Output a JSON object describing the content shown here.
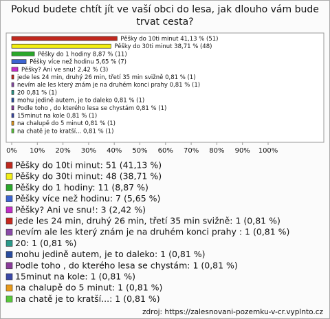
{
  "chart_data": {
    "type": "bar",
    "orientation": "horizontal",
    "title": "Pokud budete chtít jít ve vaší obci do lesa, jak dlouho vám bude trvat cesta?",
    "categories": [
      "Pěšky do 10ti minut",
      "Pěšky do 30ti minut",
      "Pěšky do 1 hodiny",
      "Pěšky více než hodinu",
      "Pěšky? Ani ve snu!",
      "jede les 24 min, druhý 26 min, třetí 35 min svižně",
      "nevím ale les který znám je na druhém konci prahy",
      "20",
      "mohu jedině autem, je to daleko",
      "Podle toho , do kterého lesa se chystám",
      "15minut na kole",
      "na chalupě do 5 minut",
      "na chatě je to kratší..."
    ],
    "values": [
      41.13,
      38.71,
      8.87,
      5.65,
      2.42,
      0.81,
      0.81,
      0.81,
      0.81,
      0.81,
      0.81,
      0.81,
      0.81
    ],
    "value_labels": [
      "41,13 % (51)",
      "38,71 % (48)",
      "8,87 % (11)",
      "5,65 % (7)",
      "2,42 % (3)",
      "0,81 % (1)",
      "0,81 % (1)",
      "0,81 % (1)",
      "0,81 % (1)",
      "0,81 % (1)",
      "0,81 % (1)",
      "0,81 % (1)",
      "0,81 % (1)"
    ],
    "colors": [
      "#c0281e",
      "#f2ee14",
      "#2aa82a",
      "#3c64d2",
      "#c22ec8",
      "#c8281e",
      "#8a4aa8",
      "#2a9a8a",
      "#284ca0",
      "#8a3a9a",
      "#3a48a8",
      "#e89a1a",
      "#58c83a"
    ],
    "legend_labels": [
      "Pěšky do 10ti minut: 51 (41,13 %)",
      "Pěšky do 30ti minut: 48 (38,71 %)",
      "Pěšky do 1 hodiny: 11 (8,87 %)",
      "Pěšky více než hodinu: 7 (5,65 %)",
      "Pěšky? Ani ve snu!: 3 (2,42 %)",
      "jede les 24 min, druhý 26 min, třetí 35 min svižně: 1 (0,81 %)",
      "nevím ale les který znám je na druhém konci prahy : 1 (0,81 %)",
      "20: 1 (0,81 %)",
      "mohu jedině autem, je to daleko: 1 (0,81 %)",
      "Podle toho , do kterého lesa se chystám: 1 (0,81 %)",
      "15minut na kole: 1 (0,81 %)",
      "na chalupě do 5 minut: 1 (0,81 %)",
      "na chatě je to kratší...: 1 (0,81 %)"
    ],
    "xlim": [
      0,
      100
    ],
    "xticks": [
      {
        "value": 0,
        "label": "0%"
      },
      {
        "value": 10,
        "label": "10%"
      },
      {
        "value": 20,
        "label": "20%"
      },
      {
        "value": 30,
        "label": "30%"
      },
      {
        "value": 40,
        "label": "40%"
      },
      {
        "value": 50,
        "label": "50%"
      },
      {
        "value": 60,
        "label": "60%"
      },
      {
        "value": 70,
        "label": "70%"
      },
      {
        "value": 80,
        "label": "80%"
      },
      {
        "value": 90,
        "label": "90%"
      },
      {
        "value": 100,
        "label": "100%"
      }
    ],
    "source": "zdroj: https://zalesnovani-pozemku-v-cr.vyplnto.cz"
  }
}
